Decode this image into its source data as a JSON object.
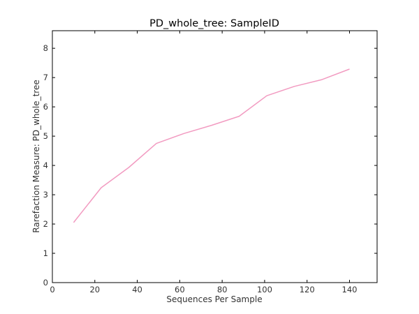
{
  "chart_data": {
    "type": "line",
    "title": "PD_whole_tree: SampleID",
    "xlabel": "Sequences Per Sample",
    "ylabel": "Rarefaction Measure: PD_whole_tree",
    "xlim": [
      0,
      153
    ],
    "ylim": [
      0,
      8.6
    ],
    "xticks": [
      0,
      20,
      40,
      60,
      80,
      100,
      120,
      140
    ],
    "yticks": [
      0,
      1,
      2,
      3,
      4,
      5,
      6,
      7,
      8
    ],
    "grid": false,
    "series": [
      {
        "color": "#f29bc1",
        "x": [
          10,
          23,
          36,
          49,
          62,
          75,
          88,
          101,
          114,
          127,
          140
        ],
        "y": [
          2.05,
          3.24,
          3.93,
          4.75,
          5.09,
          5.37,
          5.68,
          6.38,
          6.7,
          6.93,
          7.29
        ]
      }
    ]
  }
}
